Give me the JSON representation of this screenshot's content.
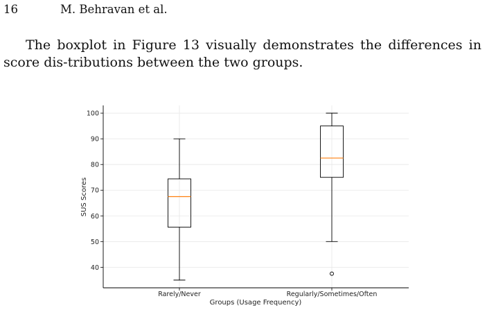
{
  "page": {
    "page_number": "16",
    "authors": "M. Behravan et al.",
    "paragraph": "The boxplot in Figure 13 visually demonstrates the differences in score dis-tributions between the two groups."
  },
  "chart_data": {
    "type": "boxplot",
    "xlabel": "Groups (Usage Frequency)",
    "ylabel": "SUS Scores",
    "ylim": [
      32,
      103
    ],
    "yticks": [
      40,
      50,
      60,
      70,
      80,
      90,
      100
    ],
    "grid": true,
    "categories": [
      "Rarely/Never",
      "Regularly/Sometimes/Often"
    ],
    "boxes": [
      {
        "name": "Rarely/Never",
        "whisker_low": 35,
        "q1": 55.6,
        "median": 67.5,
        "q3": 74.4,
        "whisker_high": 90,
        "outliers": []
      },
      {
        "name": "Regularly/Sometimes/Often",
        "whisker_low": 50,
        "q1": 75,
        "median": 82.5,
        "q3": 95,
        "whisker_high": 100,
        "outliers": [
          37.5
        ]
      }
    ],
    "colors": {
      "box": "#000000",
      "median": "#ff7f0e",
      "grid": "#e6e6e6"
    }
  }
}
